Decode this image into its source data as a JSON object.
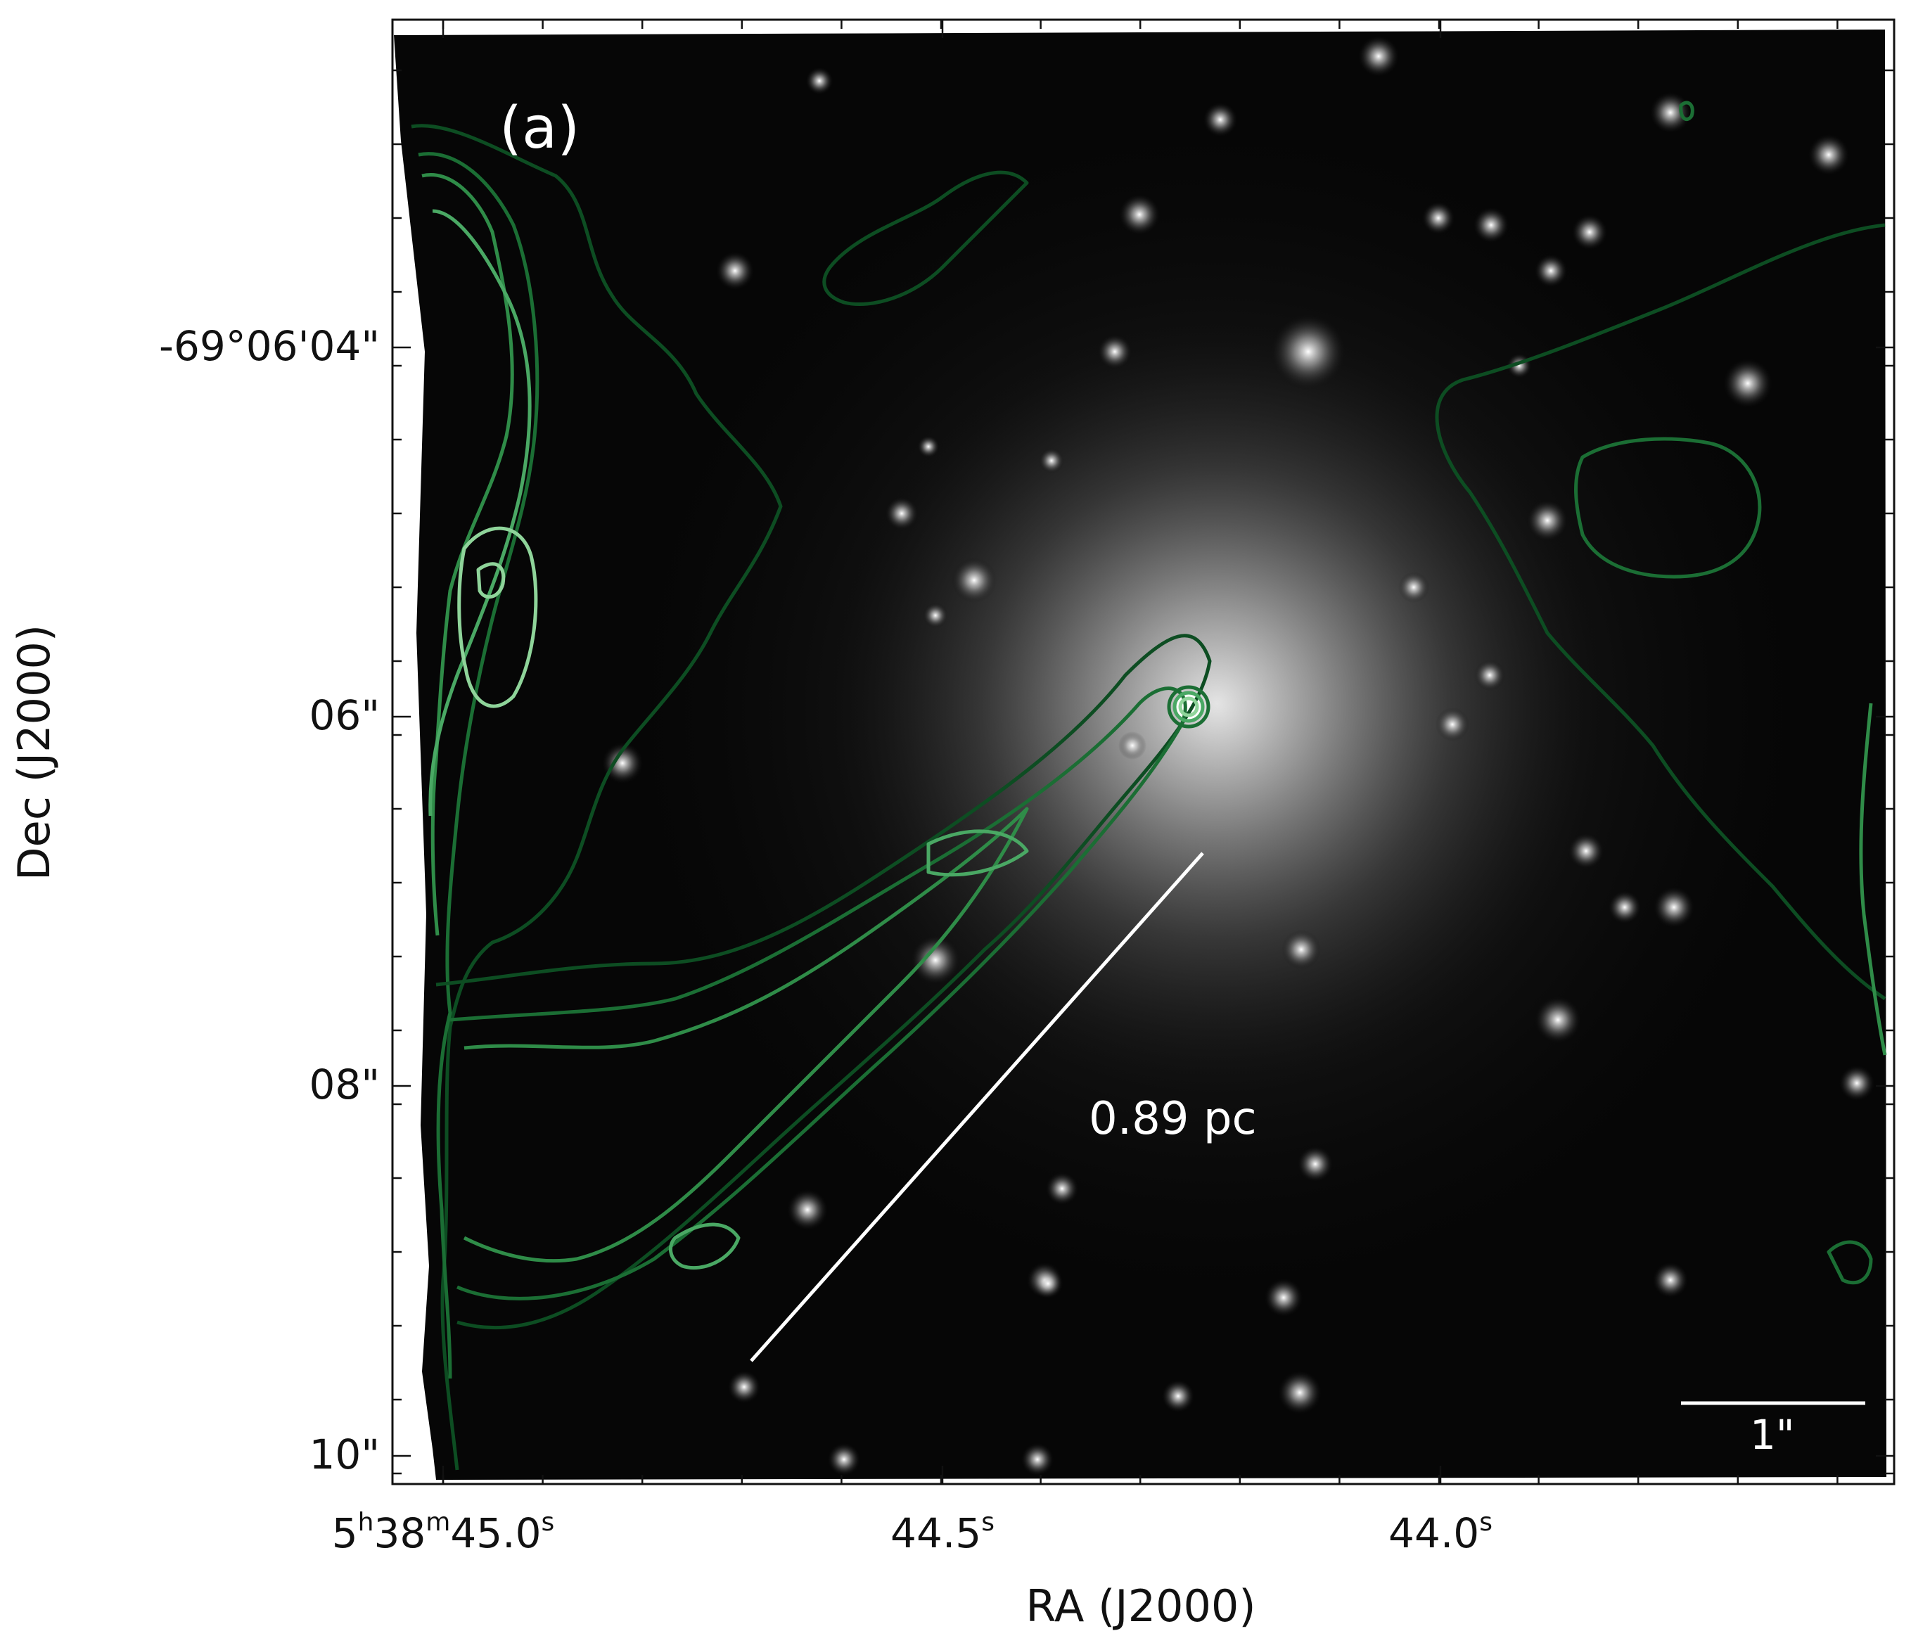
{
  "panel_label": "(a)",
  "axes": {
    "x_title": "RA (J2000)",
    "y_title": "Dec (J2000)",
    "x_ticks": [
      {
        "h": "5",
        "hs": "h",
        "m": "38",
        "ms": "m",
        "s": "45.0",
        "ss": "s"
      },
      {
        "s": "44.5",
        "ss": "s"
      },
      {
        "s": "44.0",
        "ss": "s"
      }
    ],
    "y_ticks": [
      "-69°06'04\"",
      "06\"",
      "08\"",
      "10\""
    ]
  },
  "annotations": {
    "length_label": "0.89 pc",
    "scalebar_label": "1\""
  },
  "colors": {
    "background": "#000000",
    "contours": [
      "#0d4d22",
      "#1b6e34",
      "#2f8c48",
      "#4aa864",
      "#8fd49a"
    ],
    "text_on_image": "#ffffff"
  }
}
